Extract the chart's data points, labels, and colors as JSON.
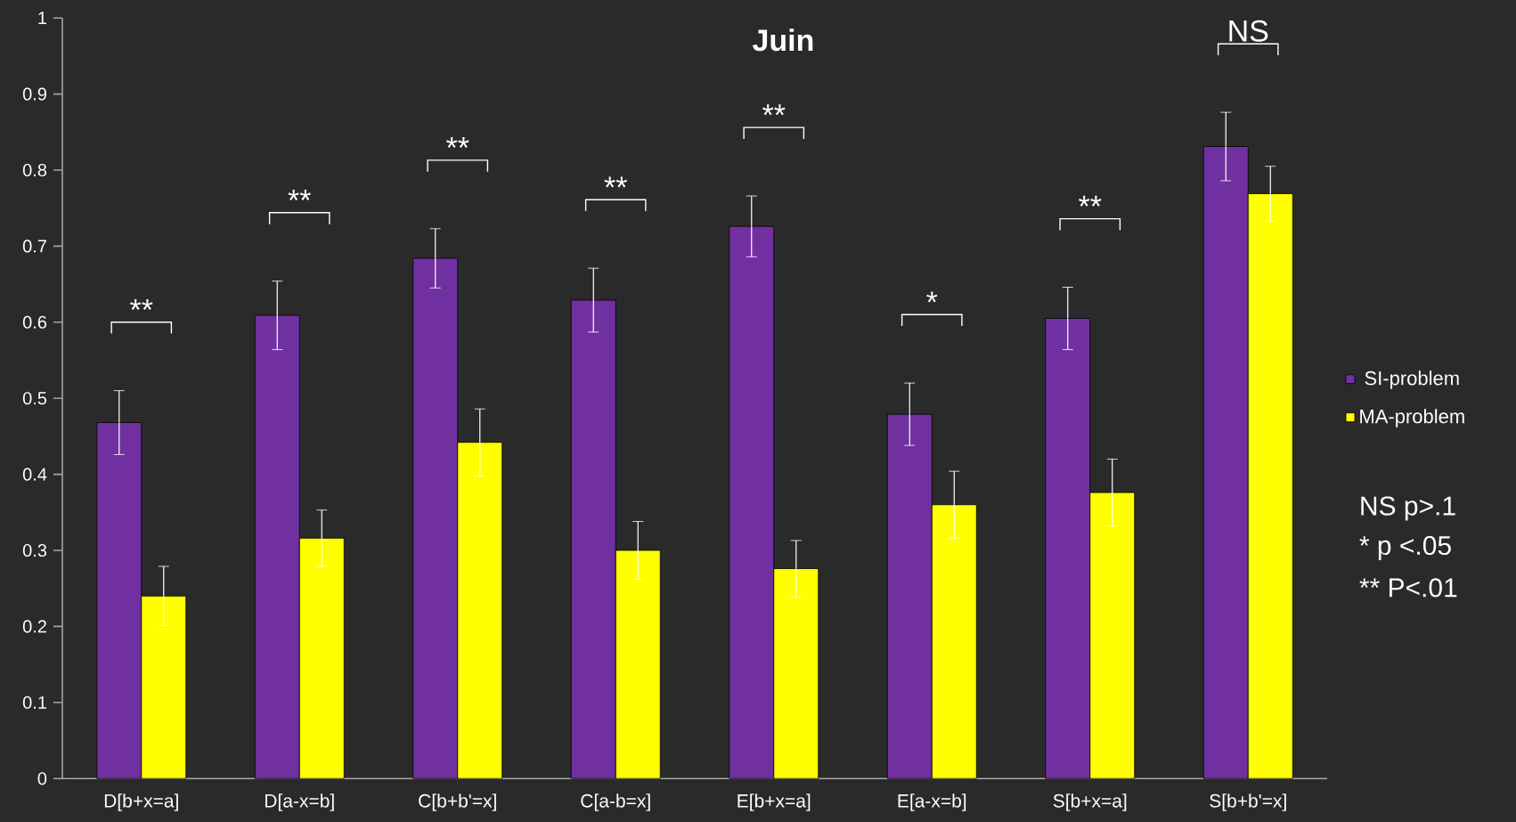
{
  "chart_data": {
    "type": "bar",
    "title": "Juin",
    "categories": [
      "D[b+x=a]",
      "D[a-x=b]",
      "C[b+b'=x]",
      "C[a-b=x]",
      "E[b+x=a]",
      "E[a-x=b]",
      "S[b+x=a]",
      "S[b+b'=x]"
    ],
    "series": [
      {
        "name": "SI-problem",
        "color": "#7030a0",
        "values": [
          0.468,
          0.609,
          0.684,
          0.629,
          0.726,
          0.479,
          0.605,
          0.831
        ],
        "errors": [
          0.042,
          0.045,
          0.039,
          0.042,
          0.04,
          0.041,
          0.041,
          0.045
        ]
      },
      {
        "name": "MA-problem",
        "color": "#ffff00",
        "values": [
          0.24,
          0.316,
          0.442,
          0.3,
          0.276,
          0.36,
          0.376,
          0.769
        ],
        "errors": [
          0.039,
          0.037,
          0.044,
          0.038,
          0.037,
          0.044,
          0.044,
          0.036
        ]
      }
    ],
    "ylim": [
      0,
      1
    ],
    "yticks": [
      0,
      0.1,
      0.2,
      0.3,
      0.4,
      0.5,
      0.6,
      0.7,
      0.8,
      0.9,
      1
    ],
    "grid": false,
    "legend": "right",
    "annotations": [
      "**",
      "**",
      "**",
      "**",
      "**",
      "*",
      "**",
      "NS",
      "NS p>.1",
      "* p <.05",
      "** P<.01"
    ]
  }
}
